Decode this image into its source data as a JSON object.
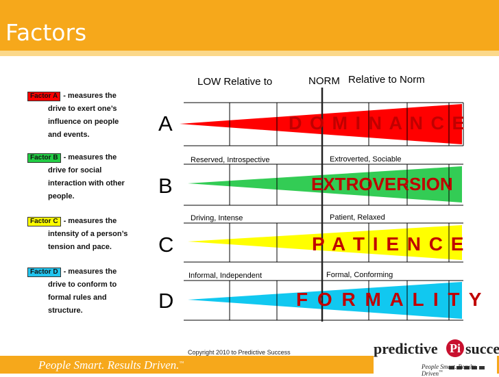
{
  "slide": {
    "title": "Factors",
    "tagline": "People Smart. Results Driven.",
    "tagline_mark": "™",
    "copyright": "Copyright 2010 to Predictive Success"
  },
  "axis": {
    "low_label": "LOW Relative to",
    "norm_label": "NORM",
    "high_label": "Relative to Norm"
  },
  "factors": [
    {
      "badge": "Factor A",
      "badge_color": "#ff0000",
      "lines": [
        "- measures the",
        "drive to exert one’s",
        "influence on people",
        "and events."
      ],
      "letter": "A",
      "left_label": "",
      "right_label": "",
      "word": "D O M I N A N C E",
      "bar_color": "#ff0000"
    },
    {
      "badge": "Factor B",
      "badge_color": "#22cc44",
      "lines": [
        "- measures the",
        "drive for social",
        "interaction with other",
        "people."
      ],
      "letter": "B",
      "left_label": "Reserved, Introspective",
      "right_label": "Extroverted, Sociable",
      "word": "EXTROVERSION",
      "bar_color": "#33cc55"
    },
    {
      "badge": "Factor C",
      "badge_color": "#ffff00",
      "lines": [
        "- measures the",
        "intensity of a person’s",
        "tension and pace."
      ],
      "letter": "C",
      "left_label": "Driving, Intense",
      "right_label": "Patient, Relaxed",
      "word": "P A T I E N C E",
      "bar_color": "#ffff00"
    },
    {
      "badge": "Factor D",
      "badge_color": "#22c4ee",
      "lines": [
        "- measures the",
        "drive to conform to",
        "formal rules and",
        "structure."
      ],
      "letter": "D",
      "left_label": "Informal, Independent",
      "right_label": "Formal, Conforming",
      "word": "F O R M A L I T Y",
      "bar_color": "#11c8f0"
    }
  ],
  "logo": {
    "text_left": "predictive",
    "text_pi": "Pi",
    "text_right": "success",
    "sub": "People Smart. Results Driven",
    "mark": "™"
  },
  "colors": {
    "header": "#f6a81b",
    "word": "#c00000"
  }
}
